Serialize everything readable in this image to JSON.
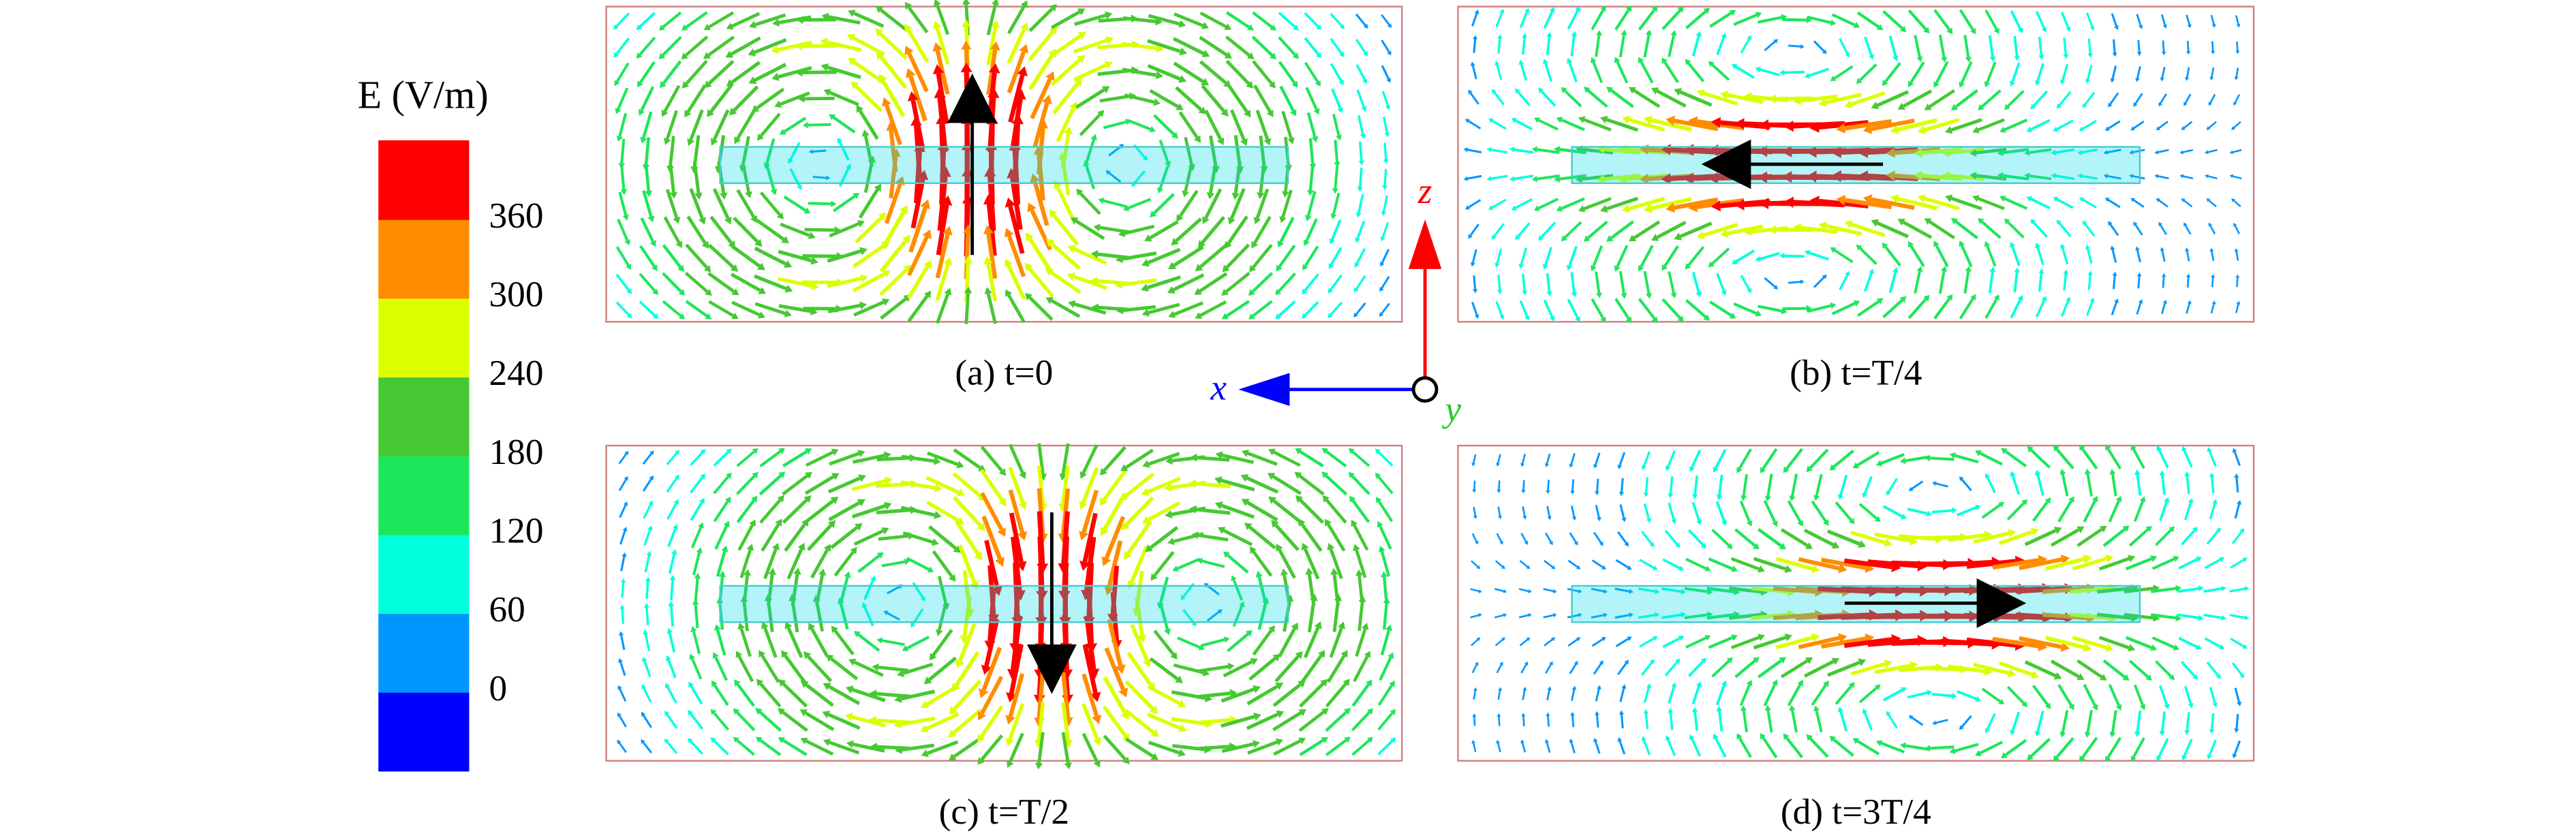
{
  "colorbar": {
    "title": "E (V/m)",
    "lim": [
      -60,
      420
    ],
    "ticks": [
      0,
      60,
      120,
      180,
      240,
      300,
      360
    ],
    "colors": [
      "#0000ff",
      "#0096ff",
      "#00ffdc",
      "#1ee65a",
      "#46c832",
      "#dcff00",
      "#ff8c00",
      "#ff0000"
    ]
  },
  "panels": [
    {
      "caption": "(a) t=0"
    },
    {
      "caption": "(b) t=T/4"
    },
    {
      "caption": "(c) t=T/2"
    },
    {
      "caption": "(d) t=3T/4"
    }
  ],
  "axes": {
    "x": "x",
    "y": "y",
    "z": "z"
  }
}
